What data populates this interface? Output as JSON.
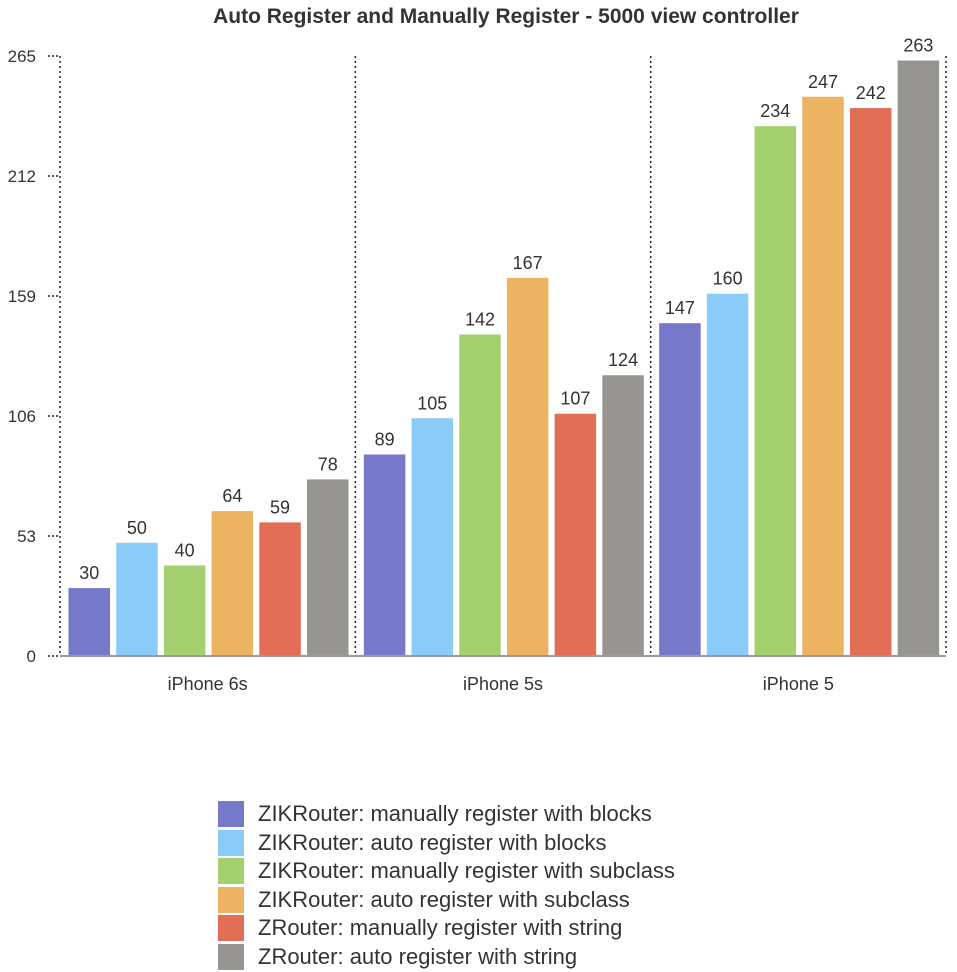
{
  "chart_data": {
    "type": "bar",
    "title": "Auto Register and Manually Register - 5000  view controller",
    "xlabel": "",
    "ylabel": "",
    "ylim": [
      0,
      265
    ],
    "yticks": [
      0,
      53,
      106,
      159,
      212,
      265
    ],
    "ytick_labels": [
      "0",
      "53",
      "106",
      "159",
      "212",
      "265"
    ],
    "grid": "vertical dotted separators between categories",
    "legend_position": "bottom",
    "categories": [
      "iPhone 6s",
      "iPhone 5s",
      "iPhone 5"
    ],
    "series": [
      {
        "name": "ZIKRouter: manually register with blocks",
        "color": "#7679c9",
        "values": [
          30,
          89,
          147
        ]
      },
      {
        "name": "ZIKRouter: auto register with blocks",
        "color": "#8acbf9",
        "values": [
          50,
          105,
          160
        ]
      },
      {
        "name": "ZIKRouter: manually register with subclass",
        "color": "#a4d070",
        "values": [
          40,
          142,
          234
        ]
      },
      {
        "name": "ZIKRouter: auto register with subclass",
        "color": "#ecb462",
        "values": [
          64,
          167,
          247
        ]
      },
      {
        "name": "ZRouter: manually register with string",
        "color": "#e36e58",
        "values": [
          59,
          107,
          242
        ]
      },
      {
        "name": "ZRouter: auto register with string",
        "color": "#979591",
        "values": [
          78,
          124,
          263
        ]
      }
    ]
  }
}
